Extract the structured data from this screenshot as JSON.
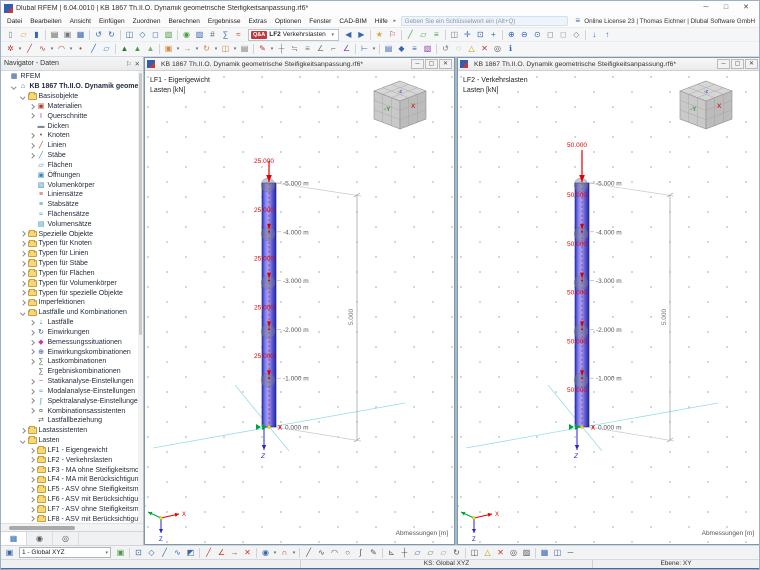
{
  "window": {
    "title": "Dlubal RFEM | 6.04.0010 | KB 1867 Th.II.O. Dynamik geometrische Steifigkeitsanpassung.rf6*"
  },
  "menu": {
    "items": [
      "Datei",
      "Bearbeiten",
      "Ansicht",
      "Einfügen",
      "Zuordnen",
      "Berechnen",
      "Ergebnisse",
      "Extras",
      "Optionen",
      "Fenster",
      "CAD-BIM",
      "Hilfe"
    ],
    "search_placeholder": "Geben Sie ein Schlüsselwort ein (Alt+Q)",
    "license": "Online License 23 | Thomas Eichner | Dlubal Software GmbH"
  },
  "toolbar_top": {
    "left_icons": [
      "new",
      "open",
      "save",
      "sep",
      "print",
      "copy",
      "table",
      "sep",
      "undo",
      "redo",
      "sep",
      "panel",
      "view-iso",
      "view-front",
      "render",
      "sep",
      "visibility",
      "clip",
      "numbering",
      "calc",
      "results"
    ],
    "load_case_selector": {
      "badge": "Q&A",
      "value": "LF2",
      "label": "Verkehrslasten"
    },
    "right_icons": [
      "prev-loadcase",
      "next-loadcase",
      "sep",
      "favorites",
      "flag",
      "sep",
      "guide",
      "workplane",
      "level",
      "sep",
      "panel2",
      "move-view",
      "zoom-window",
      "pan",
      "sep",
      "zoom-in",
      "zoom-out",
      "zoom-all",
      "view-x",
      "view-y",
      "view-iso2",
      "sep",
      "sort-x",
      "sort-z"
    ]
  },
  "toolbar_second": {
    "icons": [
      "select",
      "caret",
      "draw-line",
      "draw-polyline",
      "caret",
      "draw-arc",
      "caret",
      "node",
      "member",
      "surface",
      "sep",
      "tree-new",
      "tree-copy",
      "tree-delete",
      "sep",
      "copy-object",
      "caret",
      "move-object",
      "caret",
      "rotate-object",
      "caret",
      "mirror-object",
      "caret",
      "history",
      "sep",
      "modify",
      "caret",
      "connect",
      "divide",
      "align",
      "scale",
      "project",
      "measure",
      "sep",
      "dimension",
      "caret",
      "sep",
      "notes",
      "symbols",
      "layers",
      "render2",
      "sep",
      "refresh",
      "regen",
      "warning",
      "delete",
      "target",
      "info"
    ]
  },
  "navigator": {
    "title": "Navigator - Daten",
    "tabs": [
      "data-navigator",
      "display-navigator",
      "views-navigator"
    ],
    "tree": [
      {
        "label": "RFEM",
        "level": 0,
        "icon": "rfem",
        "chev": "none"
      },
      {
        "label": "KB 1867 Th.II.O. Dynamik geometrische Steifigkeitsanpassung",
        "level": 1,
        "icon": "model",
        "chev": "open",
        "bold": true
      },
      {
        "label": "Basisobjekte",
        "level": 2,
        "icon": "folder",
        "chev": "open"
      },
      {
        "label": "Materialien",
        "level": 3,
        "icon": "materials",
        "chev": "closed"
      },
      {
        "label": "Querschnitte",
        "level": 3,
        "icon": "sections",
        "chev": "closed"
      },
      {
        "label": "Dicken",
        "level": 3,
        "icon": "thicknesses",
        "chev": "none"
      },
      {
        "label": "Knoten",
        "level": 3,
        "icon": "nodes",
        "chev": "closed"
      },
      {
        "label": "Linien",
        "level": 3,
        "icon": "lines",
        "chev": "closed"
      },
      {
        "label": "Stäbe",
        "level": 3,
        "icon": "members",
        "chev": "closed"
      },
      {
        "label": "Flächen",
        "level": 3,
        "icon": "surfaces",
        "chev": "none"
      },
      {
        "label": "Öffnungen",
        "level": 3,
        "icon": "openings",
        "chev": "none"
      },
      {
        "label": "Volumenkörper",
        "level": 3,
        "icon": "solids",
        "chev": "none"
      },
      {
        "label": "Liniensätze",
        "level": 3,
        "icon": "line-sets",
        "chev": "none"
      },
      {
        "label": "Stabsätze",
        "level": 3,
        "icon": "member-sets",
        "chev": "none"
      },
      {
        "label": "Flächensätze",
        "level": 3,
        "icon": "surface-sets",
        "chev": "none"
      },
      {
        "label": "Volumensätze",
        "level": 3,
        "icon": "solid-sets",
        "chev": "none"
      },
      {
        "label": "Spezielle Objekte",
        "level": 2,
        "icon": "folder",
        "chev": "closed"
      },
      {
        "label": "Typen für Knoten",
        "level": 2,
        "icon": "folder",
        "chev": "closed"
      },
      {
        "label": "Typen für Linien",
        "level": 2,
        "icon": "folder",
        "chev": "closed"
      },
      {
        "label": "Typen für Stäbe",
        "level": 2,
        "icon": "folder",
        "chev": "closed"
      },
      {
        "label": "Typen für Flächen",
        "level": 2,
        "icon": "folder",
        "chev": "closed"
      },
      {
        "label": "Typen für Volumenkörper",
        "level": 2,
        "icon": "folder",
        "chev": "closed"
      },
      {
        "label": "Typen für spezielle Objekte",
        "level": 2,
        "icon": "folder",
        "chev": "closed"
      },
      {
        "label": "Imperfektionen",
        "level": 2,
        "icon": "folder",
        "chev": "closed"
      },
      {
        "label": "Lastfälle und Kombinationen",
        "level": 2,
        "icon": "folder",
        "chev": "open"
      },
      {
        "label": "Lastfälle",
        "level": 3,
        "icon": "load-cases",
        "chev": "closed"
      },
      {
        "label": "Einwirkungen",
        "level": 3,
        "icon": "actions",
        "chev": "closed"
      },
      {
        "label": "Bemessungssituationen",
        "level": 3,
        "icon": "design-situations",
        "chev": "closed"
      },
      {
        "label": "Einwirkungskombinationen",
        "level": 3,
        "icon": "action-combinations",
        "chev": "closed"
      },
      {
        "label": "Lastkombinationen",
        "level": 3,
        "icon": "load-combinations",
        "chev": "closed"
      },
      {
        "label": "Ergebniskombinationen",
        "level": 3,
        "icon": "result-combinations",
        "chev": "none"
      },
      {
        "label": "Statikanalyse-Einstellungen",
        "level": 3,
        "icon": "static-analysis",
        "chev": "closed"
      },
      {
        "label": "Modalanalyse-Einstellungen",
        "level": 3,
        "icon": "modal-analysis",
        "chev": "closed"
      },
      {
        "label": "Spektralanalyse-Einstellungen",
        "level": 3,
        "icon": "spectral-analysis",
        "chev": "closed"
      },
      {
        "label": "Kombinationsassistenten",
        "level": 3,
        "icon": "combination-wizard",
        "chev": "closed"
      },
      {
        "label": "Lastfallbeziehung",
        "level": 3,
        "icon": "load-relation",
        "chev": "none"
      },
      {
        "label": "Lastassistenten",
        "level": 2,
        "icon": "folder",
        "chev": "closed"
      },
      {
        "label": "Lasten",
        "level": 2,
        "icon": "folder",
        "chev": "open"
      },
      {
        "label": "LF1 - Eigengewicht",
        "level": 3,
        "icon": "folder",
        "chev": "closed"
      },
      {
        "label": "LF2 - Verkehrslasten",
        "level": 3,
        "icon": "folder",
        "chev": "closed"
      },
      {
        "label": "LF3 - MA ohne Steifigkeitsmodi",
        "level": 3,
        "icon": "folder",
        "chev": "closed"
      },
      {
        "label": "LF4 - MA mit Berücksichtigung",
        "level": 3,
        "icon": "folder",
        "chev": "closed"
      },
      {
        "label": "LF5 - ASV ohne Steifigkeitsmod",
        "level": 3,
        "icon": "folder",
        "chev": "closed"
      },
      {
        "label": "LF6 - ASV mit Berücksichtigung",
        "level": 3,
        "icon": "folder",
        "chev": "closed"
      },
      {
        "label": "LF7 - ASV ohne Steifigkeitsmod",
        "level": 3,
        "icon": "folder",
        "chev": "closed"
      },
      {
        "label": "LF8 - ASV mit Berücksichtigung",
        "level": 3,
        "icon": "folder",
        "chev": "closed"
      }
    ]
  },
  "viewports": [
    {
      "title": "KB 1867 Th.II.O. Dynamik geometrische Steifigkeitsanpassung.rf6*",
      "load_case": "LF1 - Eigengewicht",
      "unit": "Lasten [kN]",
      "loads": {
        "value": "25.000",
        "placement": "above",
        "count": 5
      },
      "levels": [
        "-5.000 m",
        "-4.000 m",
        "-3.000 m",
        "-2.000 m",
        "-1.000 m",
        "0.000 m"
      ],
      "height_dim": "5.000",
      "footer": "Abmessungen [m]",
      "cube": {
        "top": "-Z",
        "left": "-Y",
        "right": "X"
      },
      "axes": {
        "x": "X",
        "y": "Y",
        "z": "Z"
      }
    },
    {
      "title": "KB 1867 Th.II.O. Dynamik geometrische Steifigkeitsanpassung.rf6*",
      "load_case": "LF2 - Verkehrslasten",
      "unit": "Lasten [kN]",
      "loads": {
        "value": "50.000",
        "placement": "below",
        "count": 5
      },
      "levels": [
        "-5.000 m",
        "-4.000 m",
        "-3.000 m",
        "-2.000 m",
        "-1.000 m",
        "0.000 m"
      ],
      "height_dim": "5.000",
      "footer": "Abmessungen [m]",
      "cube": {
        "top": "-Z",
        "left": "-Y",
        "right": "X"
      },
      "axes": {
        "x": "X",
        "y": "Y",
        "z": "Z"
      }
    }
  ],
  "bottom_toolbar": {
    "coordinate_system": "1 - Global XYZ",
    "icons": [
      "picture",
      "sep",
      "sel-window",
      "sel-poly",
      "sel-line",
      "sel-free",
      "sel-invert",
      "sep",
      "guide-new",
      "guide-angle",
      "guide-move",
      "guide-delete",
      "sep",
      "snap",
      "caret",
      "osnap",
      "caret",
      "sep",
      "line-tool",
      "polyline-tool",
      "arc-tool",
      "circle-tool",
      "spline-tool",
      "freehand-tool",
      "sep",
      "ortho",
      "snap-grid",
      "plane-xy",
      "plane-xz",
      "plane-yz",
      "rotate-plane",
      "sep",
      "mirror-plane",
      "warning2",
      "delete2",
      "target2",
      "hatch",
      "sep",
      "grid-large",
      "tile",
      "minimize-all"
    ]
  },
  "status_bar": {
    "ks": "KS: Global XYZ",
    "plane": "Ebene: XY"
  }
}
